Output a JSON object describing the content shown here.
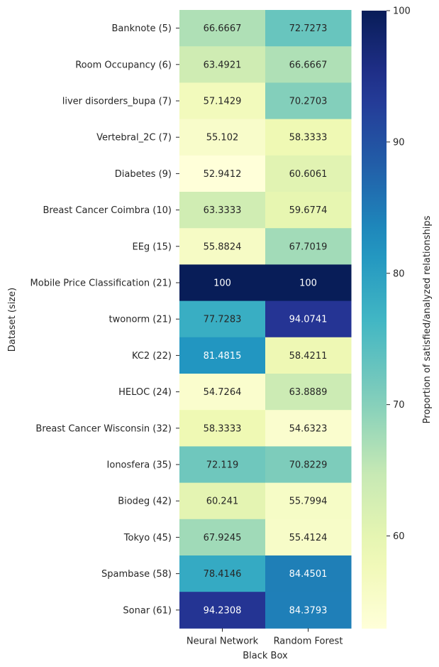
{
  "chart_data": {
    "type": "heatmap",
    "xlabel": "Black Box",
    "ylabel": "Dataset (size)",
    "colorbar_label": "Proportion of satisfied/analyzed relationships",
    "colormap": "YlGnBu",
    "color_range": [
      52.9412,
      100
    ],
    "colorbar_ticks": [
      60,
      70,
      80,
      90,
      100
    ],
    "columns": [
      "Neural Network",
      "Random Forest"
    ],
    "rows": [
      "Banknote (5)",
      "Room Occupancy (6)",
      "liver disorders_bupa (7)",
      "Vertebral_2C (7)",
      "Diabetes (9)",
      "Breast Cancer Coimbra (10)",
      "EEg (15)",
      "Mobile Price Classification (21)",
      "twonorm (21)",
      "KC2 (22)",
      "HELOC (24)",
      "Breast Cancer Wisconsin (32)",
      "Ionosfera (35)",
      "Biodeg (42)",
      "Tokyo (45)",
      "Spambase (58)",
      "Sonar (61)"
    ],
    "values": [
      [
        66.6667,
        72.7273
      ],
      [
        63.4921,
        66.6667
      ],
      [
        57.1429,
        70.2703
      ],
      [
        55.102,
        58.3333
      ],
      [
        52.9412,
        60.6061
      ],
      [
        63.3333,
        59.6774
      ],
      [
        55.8824,
        67.7019
      ],
      [
        100,
        100
      ],
      [
        77.7283,
        94.0741
      ],
      [
        81.4815,
        58.4211
      ],
      [
        54.7264,
        63.8889
      ],
      [
        58.3333,
        54.6323
      ],
      [
        72.119,
        70.8229
      ],
      [
        60.241,
        55.7994
      ],
      [
        67.9245,
        55.4124
      ],
      [
        78.4146,
        84.4501
      ],
      [
        94.2308,
        84.3793
      ]
    ],
    "labels": [
      [
        "66.6667",
        "72.7273"
      ],
      [
        "63.4921",
        "66.6667"
      ],
      [
        "57.1429",
        "70.2703"
      ],
      [
        "55.102",
        "58.3333"
      ],
      [
        "52.9412",
        "60.6061"
      ],
      [
        "63.3333",
        "59.6774"
      ],
      [
        "55.8824",
        "67.7019"
      ],
      [
        "100",
        "100"
      ],
      [
        "77.7283",
        "94.0741"
      ],
      [
        "81.4815",
        "58.4211"
      ],
      [
        "54.7264",
        "63.8889"
      ],
      [
        "58.3333",
        "54.6323"
      ],
      [
        "72.119",
        "70.8229"
      ],
      [
        "60.241",
        "55.7994"
      ],
      [
        "67.9245",
        "55.4124"
      ],
      [
        "78.4146",
        "84.4501"
      ],
      [
        "94.2308",
        "84.3793"
      ]
    ]
  }
}
